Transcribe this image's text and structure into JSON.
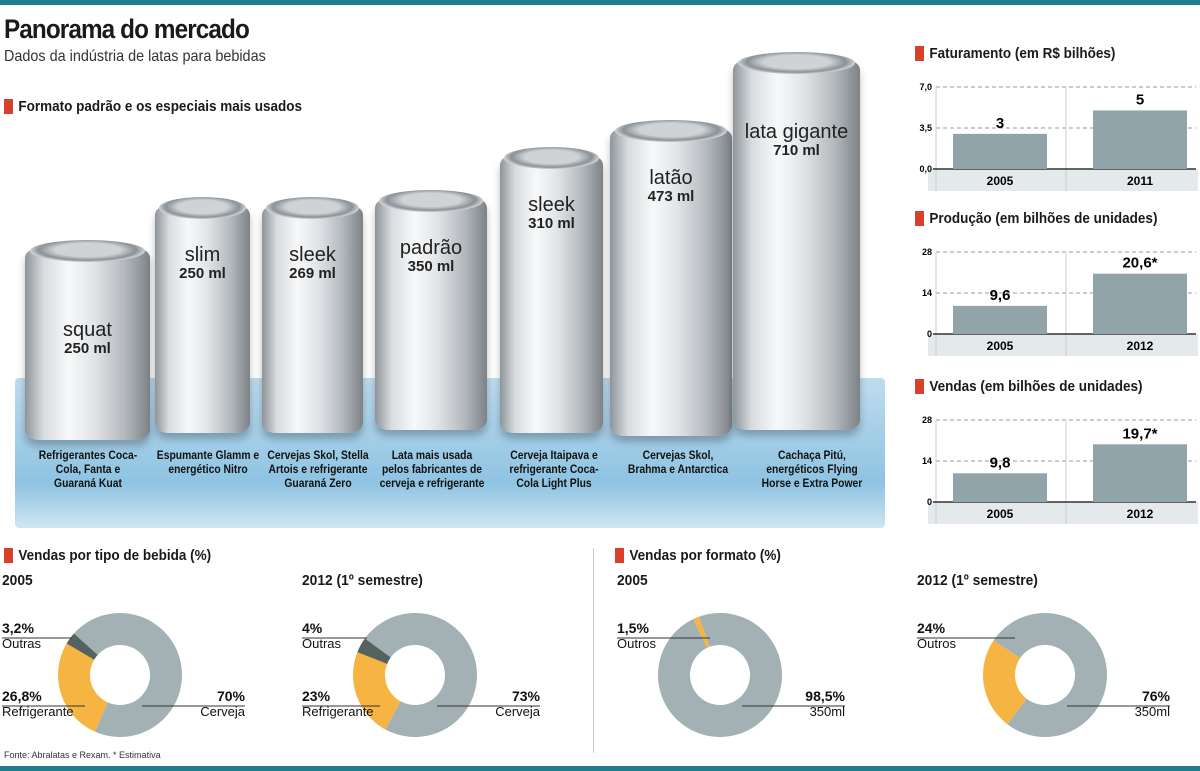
{
  "header": {
    "title": "Panorama do mercado",
    "subtitle": "Dados da indústria de latas para bebidas"
  },
  "cans_section": {
    "title": "Formato padrão e os especiais mais usados",
    "cans": [
      {
        "name": "squat",
        "volume": "250 ml",
        "use": "Refrigerantes Coca-Cola, Fanta e Guaraná Kuat"
      },
      {
        "name": "slim",
        "volume": "250 ml",
        "use": "Espumante Glamm e energético Nitro"
      },
      {
        "name": "sleek",
        "volume": "269 ml",
        "use": "Cervejas Skol, Stella Artois e refrigerante Guaraná Zero"
      },
      {
        "name": "padrão",
        "volume": "350 ml",
        "use": "Lata mais usada pelos fabricantes de cerveja e refrigerante"
      },
      {
        "name": "sleek",
        "volume": "310 ml",
        "use": "Cerveja Itaipava e refrigerante Coca-Cola Light Plus"
      },
      {
        "name": "latão",
        "volume": "473 ml",
        "use": "Cervejas Skol, Brahma e Antarctica"
      },
      {
        "name": "lata gigante",
        "volume": "710 ml",
        "use": "Cachaça Pitú, energéticos Flying Horse e Extra Power"
      }
    ]
  },
  "colors": {
    "accent": "#d9402b",
    "bar": "#90a4a9",
    "beer": "#a3b1b5",
    "soda": "#f6b443",
    "other": "#56625f",
    "teal": "#1f7d8c"
  },
  "chart_data": [
    {
      "type": "bar",
      "title": "Faturamento (em R$ bilhões)",
      "categories": [
        "2005",
        "2011"
      ],
      "values": [
        3,
        5
      ],
      "value_labels": [
        "3",
        "5"
      ],
      "ylim": [
        0,
        7
      ],
      "yticks": [
        "0,0",
        "3,5",
        "7,0"
      ],
      "ytick_values": [
        0,
        3.5,
        7
      ],
      "grid": true
    },
    {
      "type": "bar",
      "title": "Produção (em bilhões de unidades)",
      "categories": [
        "2005",
        "2012"
      ],
      "values": [
        9.6,
        20.6
      ],
      "value_labels": [
        "9,6",
        "20,6*"
      ],
      "ylim": [
        0,
        28
      ],
      "yticks": [
        "0",
        "14",
        "28"
      ],
      "ytick_values": [
        0,
        14,
        28
      ],
      "grid": true
    },
    {
      "type": "bar",
      "title": "Vendas (em bilhões de unidades)",
      "categories": [
        "2005",
        "2012"
      ],
      "values": [
        9.8,
        19.7
      ],
      "value_labels": [
        "9,8",
        "19,7*"
      ],
      "ylim": [
        0,
        28
      ],
      "yticks": [
        "0",
        "14",
        "28"
      ],
      "ytick_values": [
        0,
        14,
        28
      ],
      "grid": true
    },
    {
      "type": "pie",
      "group": "Vendas por tipo de bebida (%)",
      "title": "2005",
      "slices": [
        {
          "label": "Cerveja",
          "value": 70,
          "text": "70%"
        },
        {
          "label": "Refrigerante",
          "value": 26.8,
          "text": "26,8%"
        },
        {
          "label": "Outras",
          "value": 3.2,
          "text": "3,2%"
        }
      ]
    },
    {
      "type": "pie",
      "group": "Vendas por tipo de bebida (%)",
      "title": "2012 (1º semestre)",
      "slices": [
        {
          "label": "Cerveja",
          "value": 73,
          "text": "73%"
        },
        {
          "label": "Refrigerante",
          "value": 23,
          "text": "23%"
        },
        {
          "label": "Outras",
          "value": 4,
          "text": "4%"
        }
      ]
    },
    {
      "type": "pie",
      "group": "Vendas por formato (%)",
      "title": "2005",
      "slices": [
        {
          "label": "350ml",
          "value": 98.5,
          "text": "98,5%"
        },
        {
          "label": "Outros",
          "value": 1.5,
          "text": "1,5%"
        }
      ]
    },
    {
      "type": "pie",
      "group": "Vendas por formato (%)",
      "title": "2012 (1º semestre)",
      "slices": [
        {
          "label": "350ml",
          "value": 76,
          "text": "76%"
        },
        {
          "label": "Outros",
          "value": 24,
          "text": "24%"
        }
      ]
    }
  ],
  "sections": {
    "bebida": "Vendas por tipo de bebida (%)",
    "formato": "Vendas por formato (%)"
  },
  "footer": {
    "source": "Fonte: Abralatas e Rexam. * Estimativa"
  }
}
